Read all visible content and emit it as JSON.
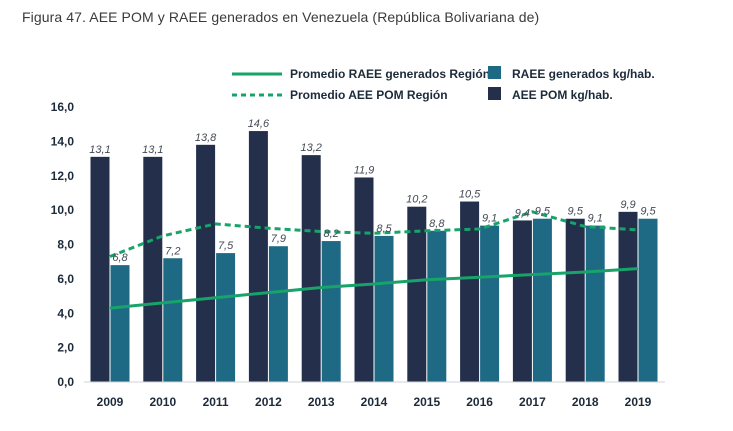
{
  "figure": {
    "title": "Figura 47. AEE POM y RAEE generados en Venezuela (República Bolivariana de)"
  },
  "chart_data": {
    "type": "bar",
    "categories": [
      "2009",
      "2010",
      "2011",
      "2012",
      "2013",
      "2014",
      "2015",
      "2016",
      "2017",
      "2018",
      "2019"
    ],
    "ylim": [
      0,
      16
    ],
    "yticks": [
      "0,0",
      "2,0",
      "4,0",
      "6,0",
      "8,0",
      "10,0",
      "12,0",
      "14,0",
      "16,0"
    ],
    "grid": false,
    "legend_position": "top",
    "series": [
      {
        "name": "AEE POM kg/hab.",
        "kind": "bar",
        "color": "#232f4b",
        "values": [
          13.1,
          13.1,
          13.8,
          14.6,
          13.2,
          11.9,
          10.2,
          10.5,
          9.4,
          9.5,
          9.9
        ],
        "labels": [
          "13,1",
          "13,1",
          "13,8",
          "14,6",
          "13,2",
          "11,9",
          "10,2",
          "10,5",
          "9,4",
          "9,5",
          "9,9"
        ]
      },
      {
        "name": "RAEE generados kg/hab.",
        "kind": "bar",
        "color": "#1e6a85",
        "values": [
          6.8,
          7.2,
          7.5,
          7.9,
          8.2,
          8.5,
          8.8,
          9.1,
          9.5,
          9.1,
          9.5
        ],
        "labels": [
          "6,8",
          "7,2",
          "7,5",
          "7,9",
          "8,2",
          "8,5",
          "8,8",
          "9,1",
          "9,5",
          "9,1",
          "9,5"
        ]
      },
      {
        "name": "Promedio RAEE generados Región",
        "kind": "line",
        "style": "solid",
        "color": "#17a36a",
        "values": [
          4.3,
          4.6,
          4.9,
          5.2,
          5.5,
          5.7,
          5.95,
          6.1,
          6.25,
          6.4,
          6.6
        ]
      },
      {
        "name": "Promedio AEE POM Región",
        "kind": "line",
        "style": "dashed",
        "color": "#17a36a",
        "values": [
          7.3,
          8.5,
          9.2,
          8.95,
          8.75,
          8.65,
          8.8,
          8.9,
          9.9,
          9.05,
          8.85
        ]
      }
    ]
  }
}
